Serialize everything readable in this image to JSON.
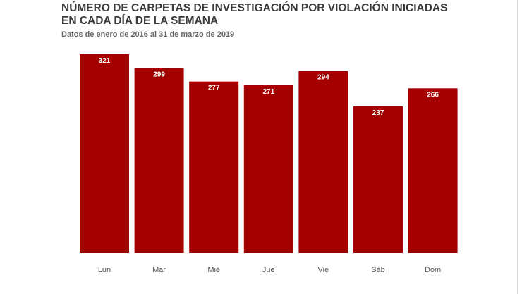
{
  "colors": {
    "bar": "#a40000",
    "axis_text": "#555555",
    "title": "#3b3b3b",
    "subtitle": "#666666"
  },
  "chart_data": {
    "type": "bar",
    "title": "NÚMERO DE CARPETAS DE INVESTIGACIÓN POR VIOLACIÓN INICIADAS\nEN CADA DÍA DE LA SEMANA",
    "subtitle": "Datos de enero de 2016 al 31 de marzo de 2019",
    "categories": [
      "Lun",
      "Mar",
      "Mié",
      "Jue",
      "Vie",
      "Sáb",
      "Dom"
    ],
    "values": [
      321,
      299,
      277,
      271,
      294,
      237,
      266
    ],
    "xlabel": "",
    "ylabel": "",
    "ylim": [
      0,
      321
    ],
    "grid": false,
    "legend": "none",
    "data_labels": true
  }
}
